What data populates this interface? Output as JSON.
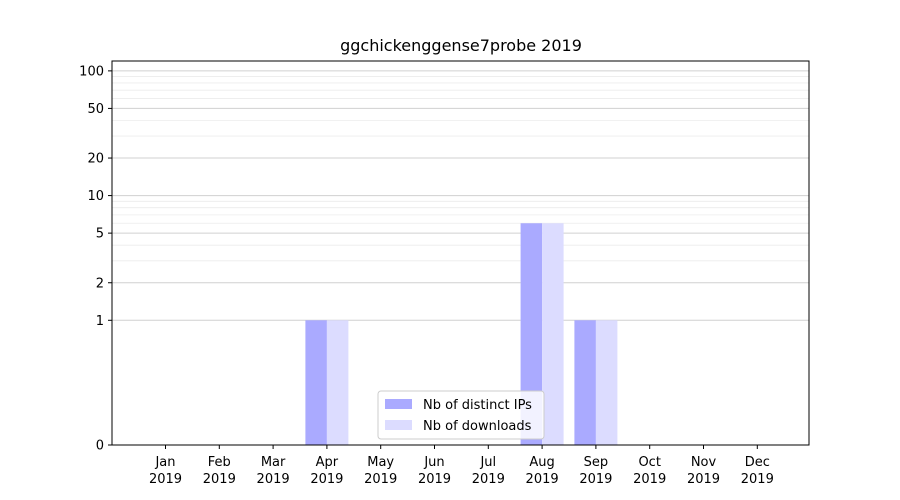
{
  "chart_data": {
    "type": "bar",
    "title": "ggchickenggense7probe 2019",
    "categories": [
      [
        "Jan",
        "2019"
      ],
      [
        "Feb",
        "2019"
      ],
      [
        "Mar",
        "2019"
      ],
      [
        "Apr",
        "2019"
      ],
      [
        "May",
        "2019"
      ],
      [
        "Jun",
        "2019"
      ],
      [
        "Jul",
        "2019"
      ],
      [
        "Aug",
        "2019"
      ],
      [
        "Sep",
        "2019"
      ],
      [
        "Oct",
        "2019"
      ],
      [
        "Nov",
        "2019"
      ],
      [
        "Dec",
        "2019"
      ]
    ],
    "series": [
      {
        "name": "Nb of distinct IPs",
        "values": [
          0,
          0,
          0,
          1,
          0,
          0,
          0,
          6,
          1,
          0,
          0,
          0
        ],
        "color": "#aaaaff"
      },
      {
        "name": "Nb of downloads",
        "values": [
          0,
          0,
          0,
          1,
          0,
          0,
          0,
          6,
          1,
          0,
          0,
          0
        ],
        "color": "#dcdcff"
      }
    ],
    "yscale": "symlog",
    "ylim": [
      0,
      120
    ],
    "yticks": [
      0,
      1,
      2,
      5,
      10,
      20,
      50,
      100
    ],
    "grid": true,
    "legend_position": "lower-center",
    "xlabel": "",
    "ylabel": ""
  }
}
